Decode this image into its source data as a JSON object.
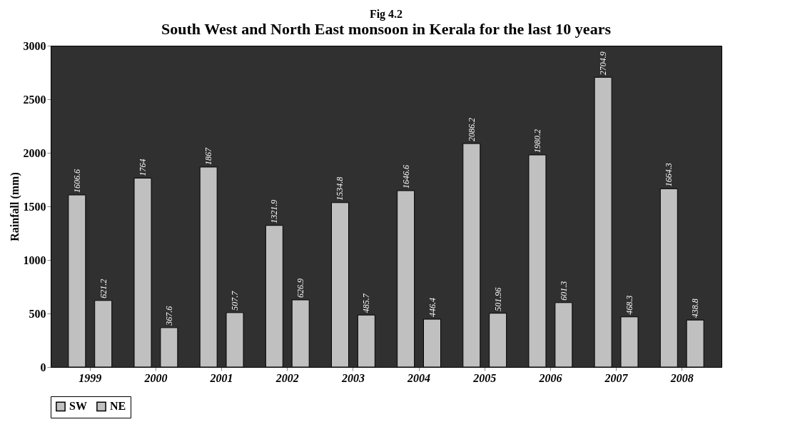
{
  "chart_data": {
    "type": "bar",
    "title": "Fig 4.2",
    "subtitle": "South West and North East monsoon in Kerala for the last 10 years",
    "ylabel": "Rainfall (mm)",
    "categories": [
      "1999",
      "2000",
      "2001",
      "2002",
      "2003",
      "2004",
      "2005",
      "2006",
      "2007",
      "2008"
    ],
    "series": [
      {
        "name": "SW",
        "color": "#c0c0c0",
        "values": [
          1606.6,
          1764,
          1867,
          1321.9,
          1534.8,
          1646.6,
          2086.2,
          1980.2,
          2704.9,
          1664.3
        ]
      },
      {
        "name": "NE",
        "color": "#c0c0c0",
        "values": [
          621.2,
          367.6,
          507.7,
          626.9,
          485.7,
          446.4,
          501.96,
          601.3,
          468.3,
          438.8
        ]
      }
    ],
    "ylim": [
      0,
      3000
    ],
    "yticks": [
      0,
      500,
      1000,
      1500,
      2000,
      2500,
      3000
    ],
    "grid": false,
    "legend": "bottom",
    "data_labels": true
  }
}
